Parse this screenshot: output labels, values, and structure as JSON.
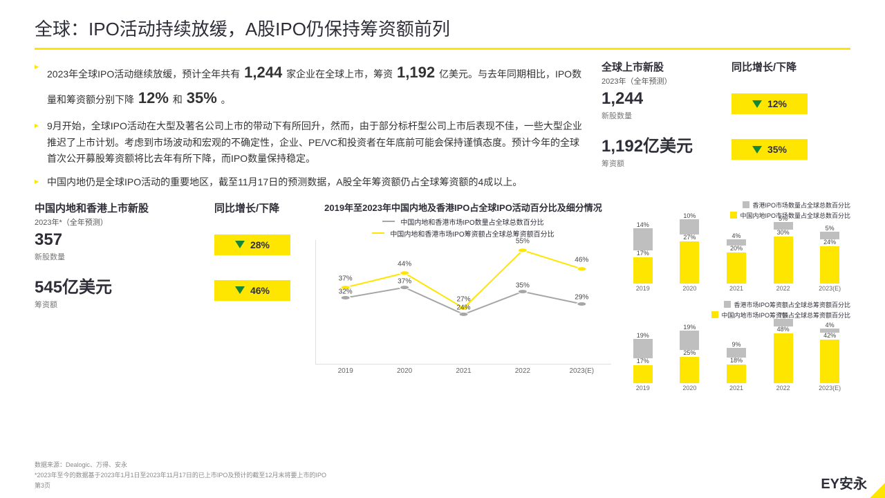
{
  "title": "全球：IPO活动持续放缓，A股IPO仍保持筹资额前列",
  "bullets": {
    "b1a": "2023年全球IPO活动继续放缓，预计全年共有",
    "b1n1": "1,244",
    "b1b": "家企业在全球上市，筹资",
    "b1n2": "1,192",
    "b1c": "亿美元。与去年同期相比，IPO数量和筹资额分别下降",
    "b1n3": "12%",
    "b1d": "和",
    "b1n4": "35%",
    "b1e": "。",
    "b2": "9月开始，全球IPO活动在大型及著名公司上市的带动下有所回升，然而，由于部分标杆型公司上市后表现不佳，一些大型企业推迟了上市计划。考虑到市场波动和宏观的不确定性，企业、PE/VC和投资者在年底前可能会保持谨慎态度。预计今年的全球首次公开募股筹资额将比去年有所下降，而IPO数量保持稳定。",
    "b3": "中国内地仍是全球IPO活动的重要地区，截至11月17日的预测数据，A股全年筹资额仍占全球筹资额的4成以上。"
  },
  "kpi_global": {
    "title": "全球上市新股",
    "sub": "2023年（全年预测）",
    "v1": "1,244",
    "l1": "新股数量",
    "v2": "1,192亿美元",
    "l2": "筹资额",
    "pct_title": "同比增长/下降",
    "p1": "12%",
    "p2": "35%"
  },
  "kpi_china": {
    "title": "中国内地和香港上市新股",
    "sub": "2023年*（全年预测）",
    "v1": "357",
    "l1": "新股数量",
    "v2": "545亿美元",
    "l2": "筹资额",
    "pct_title": "同比增长/下降",
    "p1": "28%",
    "p2": "46%"
  },
  "line_chart": {
    "title": "2019年至2023年中国内地及香港IPO占全球IPO活动百分比及细分情况",
    "series1_name": "中国内地和香港市场IPO数量占全球总数百分比",
    "series2_name": "中国内地和香港市场IPO筹资额占全球总筹资额百分比",
    "categories": [
      "2019",
      "2020",
      "2021",
      "2022",
      "2023(E)"
    ],
    "grey_color": "#a6a6a6",
    "yellow_color": "#ffe600",
    "grey_values": [
      32,
      37,
      24,
      35,
      29
    ],
    "yellow_values": [
      37,
      44,
      27,
      55,
      46
    ],
    "ymax": 60,
    "marker_size": 5,
    "line_width": 2
  },
  "bars_top": {
    "legend_grey": "香港IPO市场数量占全球总数百分比",
    "legend_yellow": "中国内地IPO市场数量占全球总数百分比",
    "grey_color": "#bfbfbf",
    "yellow_color": "#ffe600",
    "cats": [
      "2019",
      "2020",
      "2021",
      "2022",
      "2023(E)"
    ],
    "yellow": [
      17,
      27,
      20,
      30,
      24
    ],
    "grey": [
      14,
      10,
      4,
      5,
      5
    ],
    "ymax": 40
  },
  "bars_bottom": {
    "legend_grey": "香港市场IPO筹资额占全球总筹资额百分比",
    "legend_yellow": "中国内地市场IPO筹资额占全球总筹资额百分比",
    "grey_color": "#bfbfbf",
    "yellow_color": "#ffe600",
    "cats": [
      "2019",
      "2020",
      "2021",
      "2022",
      "2023(E)"
    ],
    "yellow": [
      17,
      25,
      18,
      48,
      42
    ],
    "grey": [
      19,
      19,
      9,
      7,
      4
    ],
    "ymax": 60
  },
  "footer": {
    "src": "数据来源：Dealogic、万得、安永",
    "note": "*2023年至今的数据基于2023年1月1日至2023年11月17日的已上市IPO及预计的截至12月末将要上市的IPO",
    "page": "第3页"
  },
  "brand": "EY安永"
}
